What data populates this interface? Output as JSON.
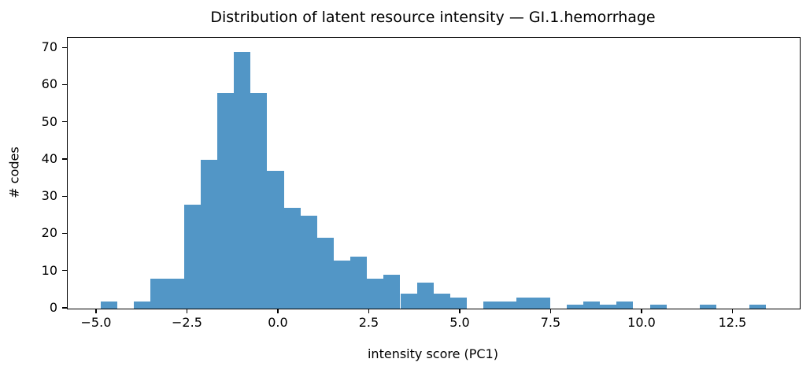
{
  "figure": {
    "background": "#ffffff",
    "axis_color": "#000000"
  },
  "chart_data": {
    "type": "bar",
    "subtype": "histogram",
    "title": "Distribution of latent resource intensity — GI.1.hemorrhage",
    "xlabel": "intensity score (PC1)",
    "ylabel": "# codes",
    "bar_color": "#5296c6",
    "bin_start": -4.89,
    "bin_width": 0.4575,
    "counts": [
      2,
      0,
      2,
      8,
      8,
      28,
      40,
      58,
      69,
      58,
      37,
      27,
      25,
      19,
      13,
      14,
      8,
      9,
      4,
      7,
      4,
      3,
      0,
      2,
      2,
      3,
      3,
      0,
      1,
      2,
      1,
      2,
      0,
      1,
      0,
      0,
      1,
      0,
      0,
      1
    ],
    "xlim": [
      -5.8,
      14.33
    ],
    "ylim": [
      0,
      72.8
    ],
    "xticks": [
      -5.0,
      -2.5,
      0.0,
      2.5,
      5.0,
      7.5,
      10.0,
      12.5
    ],
    "xtick_labels": [
      "−5.0",
      "−2.5",
      "0.0",
      "2.5",
      "5.0",
      "7.5",
      "10.0",
      "12.5"
    ],
    "yticks": [
      0,
      10,
      20,
      30,
      40,
      50,
      60,
      70
    ],
    "ytick_labels": [
      "0",
      "10",
      "20",
      "30",
      "40",
      "50",
      "60",
      "70"
    ],
    "grid": false,
    "legend": null
  }
}
